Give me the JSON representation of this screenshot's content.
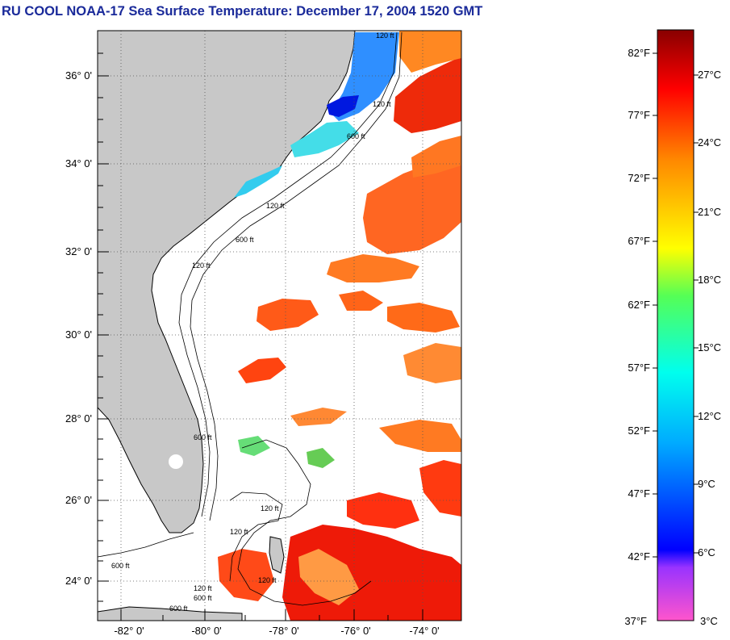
{
  "title": "RU COOL  NOAA-17  Sea Surface Temperature:  December 17, 2004 1520 GMT",
  "map": {
    "lat_labels": [
      "36° 0'",
      "34° 0'",
      "32° 0'",
      "30° 0'",
      "28° 0'",
      "26° 0'",
      "24° 0'"
    ],
    "lon_labels": [
      "-82° 0'",
      "-80° 0'",
      "-78° 0'",
      "-76° 0'",
      "-74° 0'"
    ],
    "contour_labels": [
      "120 ft",
      "120 ft",
      "600 ft",
      "120 ft",
      "600 ft",
      "120 ft",
      "600 ft",
      "120 ft",
      "600 ft",
      "120 ft",
      "120 ft",
      "120 ft",
      "600 ft",
      "600 ft"
    ],
    "land_color": "#c8c8c8",
    "cloud_color": "#ffffff"
  },
  "colorbar": {
    "fahrenheit_labels": [
      "82°F",
      "77°F",
      "72°F",
      "67°F",
      "62°F",
      "57°F",
      "52°F",
      "47°F",
      "42°F",
      "37°F"
    ],
    "celsius_labels": [
      "27°C",
      "24°C",
      "21°C",
      "18°C",
      "15°C",
      "12°C",
      "9°C",
      "6°C",
      "3°C"
    ],
    "colors": [
      "#ff55cc",
      "#9933ff",
      "#0000ff",
      "#00aaff",
      "#00ffee",
      "#55ff55",
      "#ffff00",
      "#ff8800",
      "#ff0000",
      "#880000"
    ]
  }
}
